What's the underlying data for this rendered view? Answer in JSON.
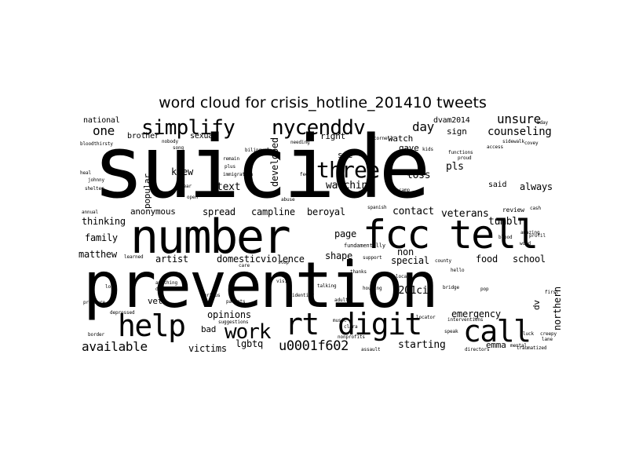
{
  "title": "word cloud for crisis_hotline_201410 tweets",
  "words": [
    {
      "text": "suicide",
      "w": 80,
      "rank": 1
    },
    {
      "text": "prevention",
      "w": 60,
      "rank": 2
    },
    {
      "text": "number",
      "w": 45,
      "rank": 3
    },
    {
      "text": "fcc",
      "w": 38,
      "rank": 4
    },
    {
      "text": "tell",
      "w": 38,
      "rank": 5
    },
    {
      "text": "help",
      "w": 32,
      "rank": 6
    },
    {
      "text": "rt",
      "w": 32,
      "rank": 7
    },
    {
      "text": "digit",
      "w": 32,
      "rank": 8
    },
    {
      "text": "call",
      "w": 30,
      "rank": 9
    },
    {
      "text": "three",
      "w": 26,
      "rank": 10
    },
    {
      "text": "simplify",
      "w": 24,
      "rank": 11
    },
    {
      "text": "nycenddv",
      "w": 24,
      "rank": 12
    },
    {
      "text": "work",
      "w": 22,
      "rank": 13
    },
    {
      "text": "u0001f602",
      "w": 16,
      "rank": 14
    },
    {
      "text": "available",
      "w": 15,
      "rank": 15
    },
    {
      "text": "one",
      "w": 14,
      "rank": 16
    },
    {
      "text": "day",
      "w": 14,
      "rank": 17
    },
    {
      "text": "unsure",
      "w": 14,
      "rank": 18
    },
    {
      "text": "counseling",
      "w": 12,
      "rank": 19
    },
    {
      "text": "starting",
      "w": 12,
      "rank": 20
    },
    {
      "text": "pls",
      "w": 12,
      "rank": 21
    },
    {
      "text": "loss",
      "w": 12,
      "rank": 22
    },
    {
      "text": "contact",
      "w": 12,
      "rank": 23
    },
    {
      "text": "veterans",
      "w": 12,
      "rank": 24
    },
    {
      "text": "tumblr",
      "w": 12,
      "rank": 25
    },
    {
      "text": "text",
      "w": 12,
      "rank": 26
    },
    {
      "text": "watching",
      "w": 12,
      "rank": 27
    },
    {
      "text": "spread",
      "w": 11,
      "rank": 28
    },
    {
      "text": "campline",
      "w": 11,
      "rank": 29
    },
    {
      "text": "beroyal",
      "w": 11,
      "rank": 30
    },
    {
      "text": "thinking",
      "w": 11,
      "rank": 31
    },
    {
      "text": "family",
      "w": 11,
      "rank": 32
    },
    {
      "text": "matthew",
      "w": 11,
      "rank": 33
    },
    {
      "text": "artist",
      "w": 11,
      "rank": 34
    },
    {
      "text": "domesticviolence",
      "w": 11,
      "rank": 35
    },
    {
      "text": "shape",
      "w": 11,
      "rank": 36
    },
    {
      "text": "page",
      "w": 11,
      "rank": 37
    },
    {
      "text": "non",
      "w": 11,
      "rank": 38
    },
    {
      "text": "special",
      "w": 11,
      "rank": 39
    },
    {
      "text": "food",
      "w": 11,
      "rank": 40
    },
    {
      "text": "school",
      "w": 11,
      "rank": 41
    },
    {
      "text": "always",
      "w": 11,
      "rank": 42
    },
    {
      "text": "said",
      "w": 10,
      "rank": 43
    },
    {
      "text": "sign",
      "w": 10,
      "rank": 44
    },
    {
      "text": "right",
      "w": 10,
      "rank": 45
    },
    {
      "text": "watch",
      "w": 10,
      "rank": 46
    },
    {
      "text": "gave",
      "w": 10,
      "rank": 47
    },
    {
      "text": "dvam2014",
      "w": 10,
      "rank": 48
    },
    {
      "text": "see",
      "w": 10,
      "rank": 49
    },
    {
      "text": "knew",
      "w": 11,
      "rank": 50
    },
    {
      "text": "national",
      "w": 10,
      "rank": 51
    },
    {
      "text": "brother",
      "w": 10,
      "rank": 52
    },
    {
      "text": "sexual",
      "w": 10,
      "rank": 53
    },
    {
      "text": "anonymous",
      "w": 10,
      "rank": 54
    },
    {
      "text": "opinions",
      "w": 11,
      "rank": 55
    },
    {
      "text": "bad",
      "w": 10,
      "rank": 56
    },
    {
      "text": "victims",
      "w": 11,
      "rank": 57
    },
    {
      "text": "lgbtq",
      "w": 11,
      "rank": 58
    },
    {
      "text": "vet",
      "w": 10,
      "rank": 59
    },
    {
      "text": "u201ci",
      "w": 11,
      "rank": 60
    },
    {
      "text": "emergency",
      "w": 11,
      "rank": 61
    },
    {
      "text": "emma",
      "w": 10,
      "rank": 62
    },
    {
      "text": "northern",
      "w": 10,
      "rank": 63
    },
    {
      "text": "dv",
      "w": 10,
      "rank": 64
    },
    {
      "text": "developed",
      "w": 10,
      "rank": 65
    },
    {
      "text": "popular",
      "w": 10,
      "rank": 66
    },
    {
      "text": "fundamentally",
      "w": 6,
      "rank": 67
    },
    {
      "text": "review",
      "w": 6,
      "rank": 68
    },
    {
      "text": "learned",
      "w": 5,
      "rank": 69
    },
    {
      "text": "bloodthirsty",
      "w": 5,
      "rank": 70
    },
    {
      "text": "suggestions",
      "w": 5,
      "rank": 71
    },
    {
      "text": "interventions",
      "w": 5,
      "rank": 72
    },
    {
      "text": "traumatized",
      "w": 5,
      "rank": 73
    },
    {
      "text": "identity",
      "w": 5,
      "rank": 74
    },
    {
      "text": "nonprofits",
      "w": 5,
      "rank": 75
    },
    {
      "text": "housing",
      "w": 5,
      "rank": 76
    },
    {
      "text": "bridge",
      "w": 5,
      "rank": 77
    },
    {
      "text": "cornell",
      "w": 5,
      "rank": 78
    },
    {
      "text": "amazing",
      "w": 5,
      "rank": 79
    },
    {
      "text": "bilingual",
      "w": 5,
      "rank": 80
    },
    {
      "text": "immigration",
      "w": 5,
      "rank": 81
    },
    {
      "text": "depressed",
      "w": 5,
      "rank": 82
    },
    {
      "text": "curious",
      "w": 5,
      "rank": 83
    },
    {
      "text": "speak",
      "w": 5,
      "rank": 84
    },
    {
      "text": "clara",
      "w": 5,
      "rank": 85
    },
    {
      "text": "border",
      "w": 5,
      "rank": 86
    },
    {
      "text": "assault",
      "w": 5,
      "rank": 87
    },
    {
      "text": "support",
      "w": 5,
      "rank": 88
    },
    {
      "text": "hello",
      "w": 5,
      "rank": 89
    },
    {
      "text": "abuse",
      "w": 5,
      "rank": 90
    },
    {
      "text": "remain",
      "w": 5,
      "rank": 91
    },
    {
      "text": "nobody",
      "w": 5,
      "rank": 92
    },
    {
      "text": "heal",
      "w": 5,
      "rank": 93
    },
    {
      "text": "johnny",
      "w": 5,
      "rank": 94
    },
    {
      "text": "shelter",
      "w": 5,
      "rank": 95
    },
    {
      "text": "song",
      "w": 5,
      "rank": 96
    },
    {
      "text": "hear",
      "w": 5,
      "rank": 97
    },
    {
      "text": "plus",
      "w": 5,
      "rank": 98
    },
    {
      "text": "feel",
      "w": 5,
      "rank": 99
    },
    {
      "text": "spanish",
      "w": 5,
      "rank": 100
    },
    {
      "text": "locator",
      "w": 5,
      "rank": 101
    },
    {
      "text": "adult",
      "w": 5,
      "rank": 102
    },
    {
      "text": "pop",
      "w": 5,
      "rank": 103
    },
    {
      "text": "cash",
      "w": 5,
      "rank": 104
    },
    {
      "text": "word",
      "w": 5,
      "rank": 105
    },
    {
      "text": "needing",
      "w": 5,
      "rank": 106
    },
    {
      "text": "learning",
      "w": 5,
      "rank": 107
    },
    {
      "text": "functions",
      "w": 5,
      "rank": 108
    },
    {
      "text": "proud",
      "w": 5,
      "rank": 109
    },
    {
      "text": "county",
      "w": 5,
      "rank": 110
    },
    {
      "text": "access",
      "w": 5,
      "rank": 111
    },
    {
      "text": "profil",
      "w": 5,
      "rank": 112
    },
    {
      "text": "covey",
      "w": 5,
      "rank": 113
    },
    {
      "text": "sidewalk",
      "w": 5,
      "rank": 114
    },
    {
      "text": "blood",
      "w": 5,
      "rank": 115
    },
    {
      "text": "music",
      "w": 5,
      "rank": 116
    },
    {
      "text": "directors",
      "w": 5,
      "rank": 117
    },
    {
      "text": "annual",
      "w": 5,
      "rank": 118
    },
    {
      "text": "pressure",
      "w": 5,
      "rank": 119
    },
    {
      "text": "anything",
      "w": 5,
      "rank": 120
    },
    {
      "text": "describe",
      "w": 5,
      "rank": 121
    },
    {
      "text": "camp",
      "w": 5,
      "rank": 122
    },
    {
      "text": "mental",
      "w": 5,
      "rank": 123
    },
    {
      "text": "creepy",
      "w": 5,
      "rank": 124
    },
    {
      "text": "lane",
      "w": 5,
      "rank": 125
    },
    {
      "text": "luck",
      "w": 5,
      "rank": 126
    },
    {
      "text": "bday",
      "w": 5,
      "rank": 127
    },
    {
      "text": "lol",
      "w": 5,
      "rank": 128
    },
    {
      "text": "visit",
      "w": 5,
      "rank": 129
    },
    {
      "text": "talking",
      "w": 5,
      "rank": 130
    },
    {
      "text": "local",
      "w": 5,
      "rank": 131
    },
    {
      "text": "parents",
      "w": 5,
      "rank": 132
    },
    {
      "text": "open",
      "w": 5,
      "rank": 133
    },
    {
      "text": "stop",
      "w": 5,
      "rank": 134
    },
    {
      "text": "care",
      "w": 5,
      "rank": 135
    },
    {
      "text": "kids",
      "w": 5,
      "rank": 136
    },
    {
      "text": "thanks",
      "w": 5,
      "rank": 137
    },
    {
      "text": "first",
      "w": 5,
      "rank": 138
    }
  ]
}
